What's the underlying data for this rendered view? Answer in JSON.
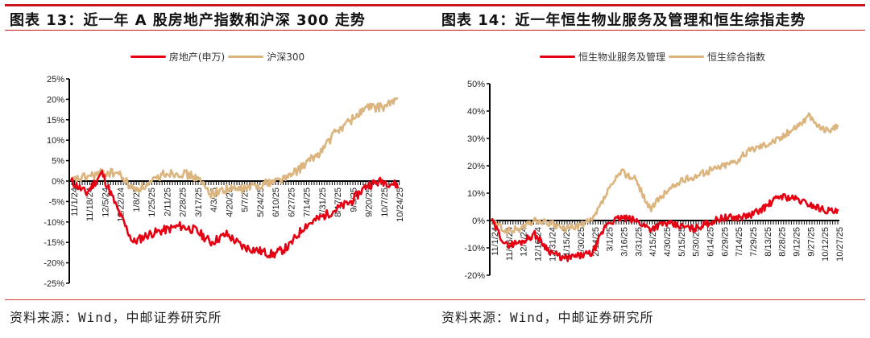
{
  "left": {
    "title": "图表 13：近一年 A 股房地产指数和沪深 300 走势",
    "source": "资料来源：Wind，中邮证券研究所",
    "legend": [
      {
        "label": "房地产(申万)",
        "color": "#e60012"
      },
      {
        "label": "沪深300",
        "color": "#dcb47e"
      }
    ]
  },
  "right": {
    "title": "图表 14：近一年恒生物业服务及管理和恒生综指走势",
    "source": "资料来源：Wind，中邮证券研究所",
    "legend": [
      {
        "label": "恒生物业服务及管理",
        "color": "#e60012"
      },
      {
        "label": "恒生综合指数",
        "color": "#dcb47e"
      }
    ]
  },
  "chart_data": [
    {
      "type": "line",
      "title": "图表 13：近一年 A 股房地产指数和沪深 300 走势",
      "xlabel": "",
      "ylabel": "",
      "ylim": [
        -25,
        25
      ],
      "yticks": [
        "25%",
        "20%",
        "15%",
        "10%",
        "5%",
        "0%",
        "-5%",
        "-10%",
        "-15%",
        "-20%",
        "-25%"
      ],
      "grid": false,
      "legend_position": "top",
      "categories": [
        "11/1/24",
        "11/18/24",
        "12/5/24",
        "12/22/24",
        "1/8/25",
        "1/25/25",
        "2/11/25",
        "2/28/25",
        "3/17/25",
        "4/3/25",
        "4/20/25",
        "5/7/25",
        "5/24/25",
        "6/10/25",
        "6/27/25",
        "7/14/25",
        "7/31/25",
        "8/17/25",
        "9/3/25",
        "9/20/25",
        "10/7/25",
        "10/24/25"
      ],
      "series": [
        {
          "name": "房地产(申万)",
          "color": "#e60012",
          "values": [
            0,
            -3,
            2,
            -7,
            -15,
            -13,
            -12,
            -11,
            -12,
            -15,
            -13,
            -16,
            -17,
            -18,
            -16,
            -11,
            -9,
            -7,
            -5,
            -1,
            0,
            -1
          ]
        },
        {
          "name": "沪深300",
          "color": "#dcb47e",
          "values": [
            0,
            1,
            2,
            2,
            -2,
            -1,
            2,
            2,
            1,
            -3,
            -2,
            -2,
            -1,
            0,
            1,
            4,
            7,
            12,
            15,
            18,
            18,
            20
          ]
        }
      ]
    },
    {
      "type": "line",
      "title": "图表 14：近一年恒生物业服务及管理和恒生综指走势",
      "xlabel": "",
      "ylabel": "",
      "ylim": [
        -20,
        50
      ],
      "yticks": [
        "50%",
        "40%",
        "30%",
        "20%",
        "10%",
        "0%",
        "-10%",
        "-20%"
      ],
      "grid": false,
      "legend_position": "top",
      "categories": [
        "11/1/24",
        "11/16/24",
        "12/1/24",
        "12/16/24",
        "12/31/24",
        "1/15/25",
        "1/30/25",
        "2/14/25",
        "3/1/25",
        "3/16/25",
        "3/31/25",
        "4/15/25",
        "4/30/25",
        "5/15/25",
        "5/30/25",
        "6/14/25",
        "6/29/25",
        "7/14/25",
        "7/29/25",
        "8/13/25",
        "8/28/25",
        "9/12/25",
        "9/27/25",
        "10/12/25",
        "10/27/25"
      ],
      "series": [
        {
          "name": "恒生物业服务及管理",
          "color": "#e60012",
          "values": [
            0,
            -9,
            -8,
            -5,
            -11,
            -14,
            -13,
            -12,
            -1,
            1,
            0,
            -3,
            -1,
            -2,
            -3,
            -1,
            1,
            1,
            2,
            5,
            9,
            8,
            6,
            4,
            3
          ]
        },
        {
          "name": "恒生综合指数",
          "color": "#dcb47e",
          "values": [
            0,
            -4,
            -3,
            0,
            -1,
            -3,
            -2,
            0,
            10,
            18,
            15,
            4,
            10,
            14,
            16,
            18,
            20,
            22,
            26,
            28,
            30,
            34,
            38,
            33,
            34
          ]
        }
      ]
    }
  ]
}
